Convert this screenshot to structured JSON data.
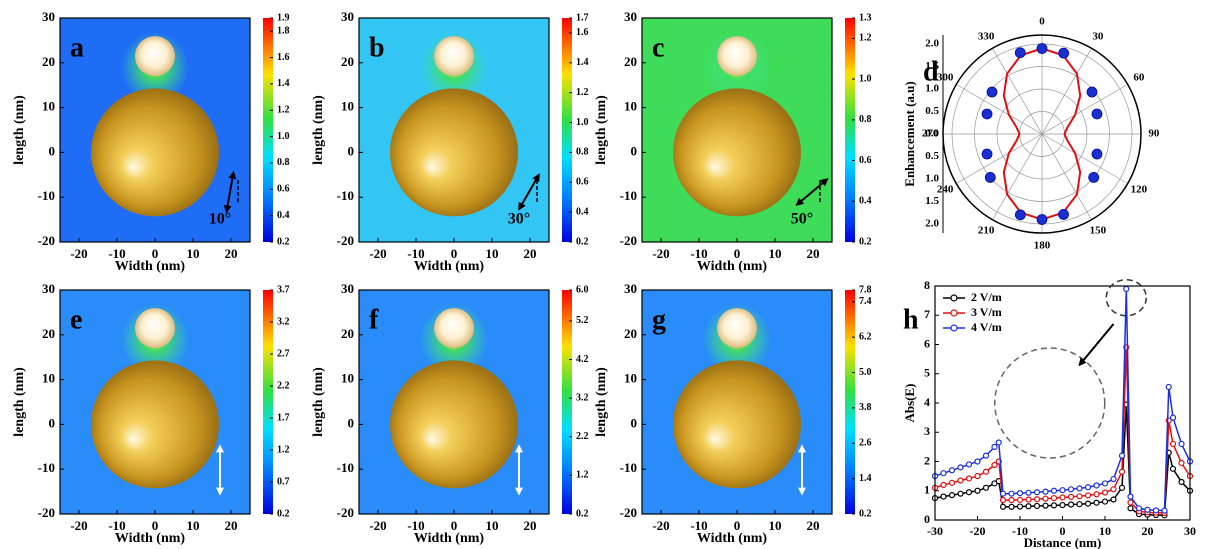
{
  "chart_data": [
    {
      "type": "heatmap",
      "panel_label": "a",
      "xlabel": "Width (nm)",
      "ylabel": "length (nm)",
      "xlim": [
        -25,
        25
      ],
      "ylim": [
        -20,
        30
      ],
      "xticks": [
        -20,
        -10,
        0,
        10,
        20
      ],
      "yticks": [
        -20,
        -10,
        0,
        10,
        20,
        30
      ],
      "clim": [
        0.2,
        1.9
      ],
      "cticks": [
        0.2,
        0.4,
        0.6,
        0.8,
        {
          "value": 1.0,
          "label": "1.0"
        },
        1.2,
        1.4,
        1.6,
        1.8,
        1.9
      ],
      "annotation": "10°",
      "field_color": "#1f6cf5"
    },
    {
      "type": "heatmap",
      "panel_label": "b",
      "xlabel": "Width (nm)",
      "ylabel": "length (nm)",
      "xlim": [
        -25,
        25
      ],
      "ylim": [
        -20,
        30
      ],
      "xticks": [
        -20,
        -10,
        0,
        10,
        20
      ],
      "yticks": [
        -20,
        -10,
        0,
        10,
        20,
        30
      ],
      "clim": [
        0.2,
        1.7
      ],
      "cticks": [
        0.2,
        0.4,
        0.6,
        0.8,
        {
          "value": 1.0,
          "label": "1.0"
        },
        1.2,
        1.4,
        1.6,
        1.7
      ],
      "annotation": "30°",
      "field_color": "#33c6f5"
    },
    {
      "type": "heatmap",
      "panel_label": "c",
      "xlabel": "Width (nm)",
      "ylabel": "length (nm)",
      "xlim": [
        -25,
        25
      ],
      "ylim": [
        -20,
        30
      ],
      "xticks": [
        -20,
        -10,
        0,
        10,
        20
      ],
      "yticks": [
        -20,
        -10,
        0,
        10,
        20,
        30
      ],
      "clim": [
        0.2,
        1.3
      ],
      "cticks": [
        0.2,
        0.4,
        0.6,
        0.8,
        {
          "value": 1.0,
          "label": "1.0"
        },
        1.2,
        1.3
      ],
      "annotation": "50°",
      "field_color": "#3fdc5a"
    },
    {
      "type": "polar",
      "panel_label": "d",
      "ylabel": "Enhancement (a.u)",
      "rlim": [
        0,
        2.2
      ],
      "rticks": [
        {
          "value": 0,
          "label": "0.0"
        },
        0.5,
        {
          "value": 1.0,
          "label": "1.0"
        },
        1.5,
        {
          "value": 2.0,
          "label": "2.0"
        }
      ],
      "thetaticks": [
        0,
        30,
        60,
        90,
        120,
        150,
        180,
        210,
        240,
        270,
        300,
        330
      ],
      "points": {
        "color": "#1a2fd0",
        "theta": [
          345,
          0,
          15,
          50,
          70,
          110,
          130,
          165,
          180,
          195,
          230,
          250,
          290,
          310
        ],
        "r": [
          1.87,
          1.9,
          1.86,
          1.45,
          1.3,
          1.3,
          1.5,
          1.85,
          1.9,
          1.86,
          1.5,
          1.3,
          1.3,
          1.45
        ]
      },
      "curve": {
        "color": "#e01010",
        "theta": [
          0,
          15,
          30,
          45,
          60,
          75,
          90,
          105,
          120,
          135,
          150,
          165,
          180,
          195,
          210,
          225,
          240,
          255,
          270,
          285,
          300,
          315,
          330,
          345,
          360
        ],
        "r": [
          1.9,
          1.81,
          1.55,
          1.2,
          0.85,
          0.59,
          0.5,
          0.59,
          0.85,
          1.2,
          1.55,
          1.81,
          1.9,
          1.81,
          1.55,
          1.2,
          0.85,
          0.59,
          0.5,
          0.59,
          0.85,
          1.2,
          1.55,
          1.81,
          1.9
        ]
      }
    },
    {
      "type": "heatmap",
      "panel_label": "e",
      "xlabel": "Width (nm)",
      "ylabel": "length (nm)",
      "xlim": [
        -25,
        25
      ],
      "ylim": [
        -20,
        30
      ],
      "xticks": [
        -20,
        -10,
        0,
        10,
        20
      ],
      "yticks": [
        -20,
        -10,
        0,
        10,
        20,
        30
      ],
      "clim": [
        0.2,
        3.7
      ],
      "cticks": [
        0.2,
        0.7,
        1.2,
        1.7,
        2.2,
        2.7,
        3.2,
        3.7
      ],
      "field_color": "#2a8cf8"
    },
    {
      "type": "heatmap",
      "panel_label": "f",
      "xlabel": "Width (nm)",
      "ylabel": "length (nm)",
      "xlim": [
        -25,
        25
      ],
      "ylim": [
        -20,
        30
      ],
      "xticks": [
        -20,
        -10,
        0,
        10,
        20
      ],
      "yticks": [
        -20,
        -10,
        0,
        10,
        20,
        30
      ],
      "clim": [
        0.2,
        6.0
      ],
      "cticks": [
        0.2,
        1.2,
        2.2,
        3.2,
        4.2,
        5.2,
        {
          "value": 6.0,
          "label": "6.0"
        }
      ],
      "field_color": "#2a8cf8"
    },
    {
      "type": "heatmap",
      "panel_label": "g",
      "xlabel": "Width (nm)",
      "ylabel": "length (nm)",
      "xlim": [
        -25,
        25
      ],
      "ylim": [
        -20,
        30
      ],
      "xticks": [
        -20,
        -10,
        0,
        10,
        20
      ],
      "yticks": [
        -20,
        -10,
        0,
        10,
        20,
        30
      ],
      "clim": [
        0.2,
        7.8
      ],
      "cticks": [
        0.2,
        1.4,
        2.6,
        3.8,
        {
          "value": 5.0,
          "label": "5.0"
        },
        6.2,
        7.4,
        7.8
      ],
      "field_color": "#2a8cf8"
    },
    {
      "type": "line",
      "panel_label": "h",
      "xlabel": "Distance (nm)",
      "ylabel": "Abs(E)",
      "xlim": [
        -30,
        30
      ],
      "ylim": [
        0,
        8
      ],
      "xticks": [
        -30,
        -20,
        -10,
        0,
        10,
        20,
        30
      ],
      "yticks": [
        0,
        1,
        2,
        3,
        4,
        5,
        6,
        7,
        8
      ],
      "legend": "upper left",
      "x": [
        -30,
        -28,
        -26,
        -24,
        -22,
        -20,
        -18,
        -16,
        -15,
        -14,
        -12,
        -10,
        -8,
        -6,
        -4,
        -2,
        0,
        2,
        4,
        6,
        8,
        10,
        12,
        14,
        15,
        16,
        18,
        20,
        22,
        24,
        25,
        26,
        28,
        30
      ],
      "series": [
        {
          "name": "2 V/m",
          "color": "#000000",
          "values": [
            0.75,
            0.8,
            0.85,
            0.9,
            0.95,
            1.0,
            1.1,
            1.25,
            1.33,
            0.45,
            0.45,
            0.46,
            0.47,
            0.48,
            0.49,
            0.5,
            0.51,
            0.53,
            0.54,
            0.56,
            0.59,
            0.63,
            0.7,
            1.1,
            3.95,
            0.4,
            0.2,
            0.18,
            0.17,
            0.16,
            2.3,
            1.75,
            1.3,
            1.0
          ]
        },
        {
          "name": "3 V/m",
          "color": "#e01010",
          "values": [
            1.1,
            1.2,
            1.27,
            1.35,
            1.42,
            1.5,
            1.65,
            1.88,
            2.0,
            0.68,
            0.68,
            0.69,
            0.7,
            0.71,
            0.73,
            0.75,
            0.77,
            0.79,
            0.81,
            0.84,
            0.88,
            0.94,
            1.05,
            1.65,
            5.9,
            0.6,
            0.3,
            0.26,
            0.25,
            0.24,
            3.4,
            2.6,
            1.95,
            1.5
          ]
        },
        {
          "name": "4 V/m",
          "color": "#1a2fe0",
          "values": [
            1.5,
            1.6,
            1.7,
            1.8,
            1.9,
            2.0,
            2.2,
            2.5,
            2.65,
            0.9,
            0.9,
            0.92,
            0.93,
            0.95,
            0.97,
            1.0,
            1.02,
            1.05,
            1.08,
            1.12,
            1.18,
            1.25,
            1.4,
            2.2,
            7.9,
            0.8,
            0.4,
            0.35,
            0.33,
            0.32,
            4.55,
            3.5,
            2.6,
            2.0
          ]
        }
      ]
    }
  ]
}
